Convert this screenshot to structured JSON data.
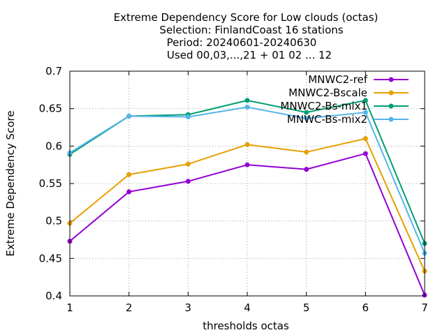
{
  "chart_data": {
    "type": "line",
    "title_lines": [
      "Extreme Dependency Score  for Low clouds (octas)",
      "Selection: FinlandCoast      16 stations",
      "Period: 20240601-20240630",
      "Used 00,03,...,21 + 01 02 ... 12"
    ],
    "xlabel": "thresholds octas",
    "ylabel": "Extreme Dependency Score",
    "xlim": [
      1,
      7
    ],
    "ylim": [
      0.4,
      0.7
    ],
    "x_ticks": [
      "1",
      "2",
      "3",
      "4",
      "5",
      "6",
      "7"
    ],
    "y_ticks": [
      "0.4",
      "0.45",
      "0.5",
      "0.55",
      "0.6",
      "0.65",
      "0.7"
    ],
    "grid": true,
    "legend_position": "top-right",
    "x": [
      1,
      2,
      3,
      4,
      5,
      6,
      7
    ],
    "series": [
      {
        "name": "MNWC2-ref",
        "color": "#9400d3",
        "values": [
          0.473,
          0.539,
          0.553,
          0.575,
          0.569,
          0.59,
          0.401
        ]
      },
      {
        "name": "MNWC2-Bscale",
        "color": "#e69f00",
        "values": [
          0.497,
          0.562,
          0.576,
          0.602,
          0.592,
          0.61,
          0.433
        ]
      },
      {
        "name": "MNWC2-Bs-mix1",
        "color": "#009e73",
        "values": [
          0.589,
          0.64,
          0.642,
          0.661,
          0.645,
          0.661,
          0.47
        ]
      },
      {
        "name": "MNWC-Bs-mix2",
        "color": "#56b4e9",
        "values": [
          0.591,
          0.64,
          0.639,
          0.652,
          0.637,
          0.645,
          0.457
        ]
      }
    ]
  }
}
